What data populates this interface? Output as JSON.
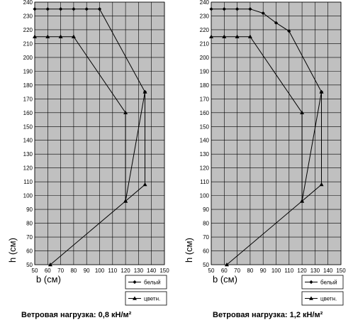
{
  "chart_data": [
    {
      "type": "line",
      "xlabel": "b (см)",
      "ylabel": "h (см)",
      "xlim": [
        50,
        150
      ],
      "ylim": [
        50,
        240
      ],
      "xticks": [
        50,
        60,
        70,
        80,
        90,
        100,
        110,
        120,
        130,
        140,
        150
      ],
      "yticks": [
        50,
        60,
        70,
        80,
        90,
        100,
        110,
        120,
        130,
        140,
        150,
        160,
        170,
        180,
        190,
        200,
        210,
        220,
        230,
        240
      ],
      "grid": true,
      "legend_position": "bottom-right",
      "caption": "Ветровая нагрузка: 0,8 кН/м²",
      "series": [
        {
          "name": "белый",
          "marker": "diamond",
          "x": [
            50,
            60,
            70,
            80,
            90,
            100,
            135
          ],
          "y": [
            235,
            235,
            235,
            235,
            235,
            235,
            175
          ]
        },
        {
          "name": "цветн.",
          "marker": "triangle",
          "x": [
            50,
            60,
            70,
            80,
            120,
            120,
            135,
            135,
            120,
            62
          ],
          "y": [
            215,
            215,
            215,
            215,
            160,
            96,
            108,
            175,
            96,
            50
          ]
        }
      ]
    },
    {
      "type": "line",
      "xlabel": "b (см)",
      "ylabel": "h (см)",
      "xlim": [
        50,
        150
      ],
      "ylim": [
        50,
        240
      ],
      "xticks": [
        50,
        60,
        70,
        80,
        90,
        100,
        110,
        120,
        130,
        140,
        150
      ],
      "yticks": [
        50,
        60,
        70,
        80,
        90,
        100,
        110,
        120,
        130,
        140,
        150,
        160,
        170,
        180,
        190,
        200,
        210,
        220,
        230,
        240
      ],
      "grid": true,
      "legend_position": "bottom-right",
      "caption": "Ветровая нагрузка: 1,2 кН/м²",
      "series": [
        {
          "name": "белый",
          "marker": "diamond",
          "x": [
            50,
            60,
            70,
            80,
            90,
            100,
            110,
            135
          ],
          "y": [
            235,
            235,
            235,
            235,
            232,
            225,
            219,
            175
          ]
        },
        {
          "name": "цветн.",
          "marker": "triangle",
          "x": [
            50,
            60,
            70,
            80,
            120,
            120,
            135,
            135,
            120,
            62
          ],
          "y": [
            215,
            215,
            215,
            215,
            160,
            96,
            108,
            175,
            96,
            50
          ]
        }
      ]
    }
  ]
}
